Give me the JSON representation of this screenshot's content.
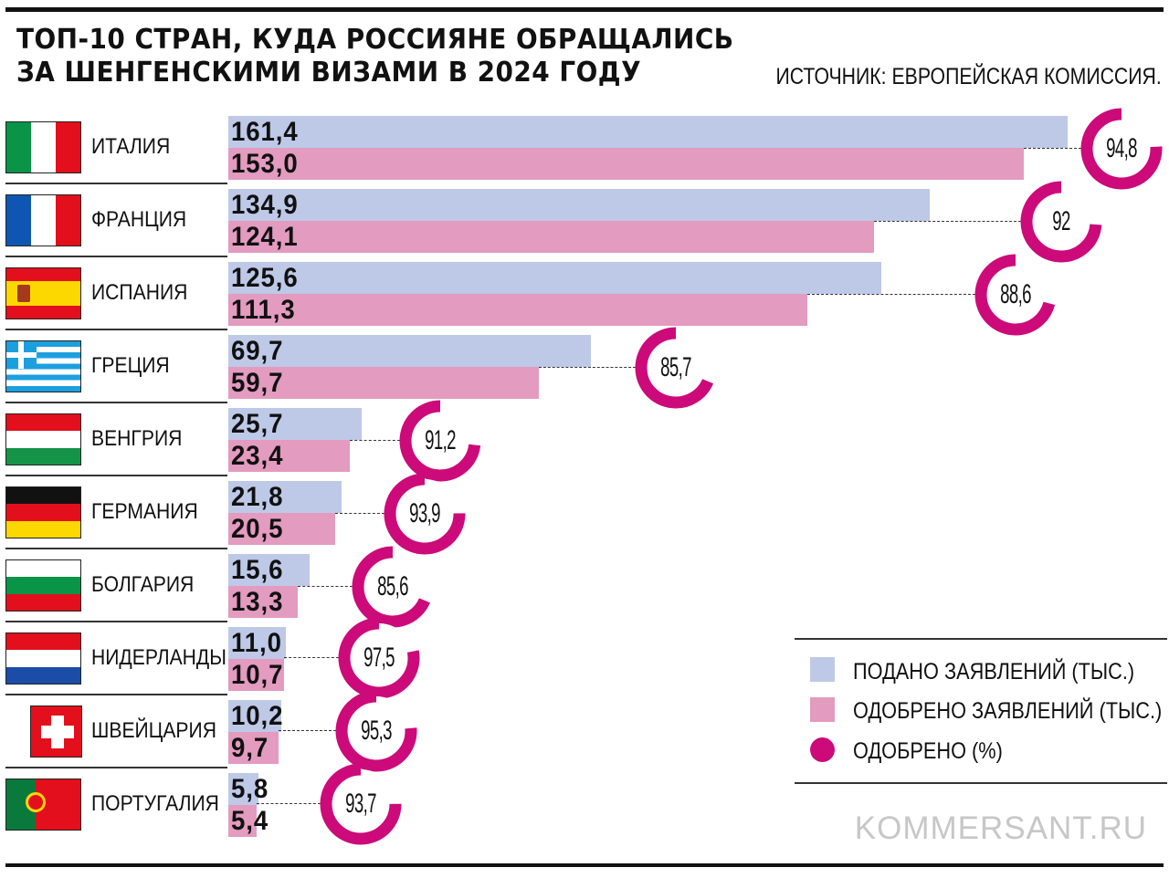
{
  "title_line1": "ТОП-10 СТРАН, КУДА РОССИЯНЕ ОБРАЩАЛИСЬ",
  "title_line2": "ЗА ШЕНГЕНСКИМИ ВИЗАМИ В 2024 ГОДУ",
  "source": "ИСТОЧНИК: ЕВРОПЕЙСКАЯ КОМИССИЯ.",
  "brand": "KOMMERSANT.RU",
  "colors": {
    "submitted": "#bec9e8",
    "approved": "#e39bc0",
    "percent": "#cc0a7a"
  },
  "legend": [
    {
      "label": "ПОДАНО ЗАЯВЛЕНИЙ (ТЫС.)"
    },
    {
      "label": "ОДОБРЕНО ЗАЯВЛЕНИЙ (ТЫС.)"
    },
    {
      "label": "ОДОБРЕНО (%)"
    }
  ],
  "chart_data": {
    "type": "bar",
    "orientation": "horizontal",
    "title": "ТОП-10 СТРАН, КУДА РОССИЯНЕ ОБРАЩАЛИСЬ ЗА ШЕНГЕНСКИМИ ВИЗАМИ В 2024 ГОДУ",
    "categories": [
      "ИТАЛИЯ",
      "ФРАНЦИЯ",
      "ИСПАНИЯ",
      "ГРЕЦИЯ",
      "ВЕНГРИЯ",
      "ГЕРМАНИЯ",
      "БОЛГАРИЯ",
      "НИДЕРЛАНДЫ",
      "ШВЕЙЦАРИЯ",
      "ПОРТУГАЛИЯ"
    ],
    "flags": [
      "italy-flag",
      "france-flag",
      "spain-flag",
      "greece-flag",
      "hungary-flag",
      "germany-flag",
      "bulgaria-flag",
      "netherlands-flag",
      "switzerland-flag",
      "portugal-flag"
    ],
    "series": [
      {
        "name": "ПОДАНО ЗАЯВЛЕНИЙ (ТЫС.)",
        "values": [
          161.4,
          134.9,
          125.6,
          69.7,
          25.7,
          21.8,
          15.6,
          11.0,
          10.2,
          5.8
        ],
        "labels": [
          "161,4",
          "134,9",
          "125,6",
          "69,7",
          "25,7",
          "21,8",
          "15,6",
          "11,0",
          "10,2",
          "5,8"
        ]
      },
      {
        "name": "ОДОБРЕНО ЗАЯВЛЕНИЙ (ТЫС.)",
        "values": [
          153.0,
          124.1,
          111.3,
          59.7,
          23.4,
          20.5,
          13.3,
          10.7,
          9.7,
          5.4
        ],
        "labels": [
          "153,0",
          "124,1",
          "111,3",
          "59,7",
          "23,4",
          "20,5",
          "13,3",
          "10,7",
          "9,7",
          "5,4"
        ]
      },
      {
        "name": "ОДОБРЕНО (%)",
        "values": [
          94.8,
          92,
          88.6,
          85.7,
          91.2,
          93.9,
          85.6,
          97.5,
          95.3,
          93.7
        ],
        "labels": [
          "94,8",
          "92",
          "88,6",
          "85,7",
          "91,2",
          "93,9",
          "85,6",
          "97,5",
          "95,3",
          "93,7"
        ]
      }
    ],
    "xlim": [
      0,
      161.4
    ],
    "legend_position": "bottom-right"
  }
}
